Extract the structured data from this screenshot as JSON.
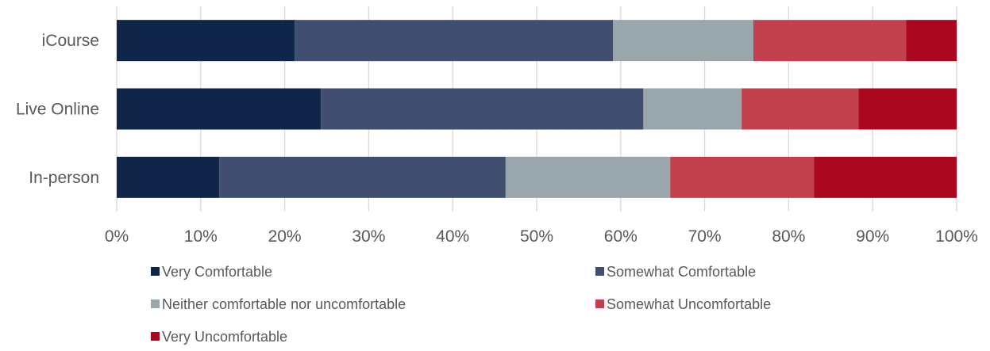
{
  "chart_data": {
    "type": "bar",
    "orientation": "horizontal",
    "stacked": "percent",
    "title": "",
    "xlabel": "",
    "ylabel": "",
    "xlim": [
      0,
      100
    ],
    "grid": true,
    "legend_position": "bottom",
    "categories": [
      "iCourse",
      "Live Online",
      "In-person"
    ],
    "x_ticks": [
      "0%",
      "10%",
      "20%",
      "30%",
      "40%",
      "50%",
      "60%",
      "70%",
      "80%",
      "90%",
      "100%"
    ],
    "series": [
      {
        "name": "Very Comfortable",
        "color": "#0f2549",
        "values": [
          21.2,
          24.3,
          12.2
        ]
      },
      {
        "name": "Somewhat Comfortable",
        "color": "#404f70",
        "values": [
          37.9,
          38.4,
          34.1
        ]
      },
      {
        "name": "Neither comfortable nor uncomfortable",
        "color": "#99a6ab",
        "values": [
          16.7,
          11.7,
          19.6
        ]
      },
      {
        "name": "Somewhat Uncomfortable",
        "color": "#c2404e",
        "values": [
          18.2,
          13.9,
          17.1
        ]
      },
      {
        "name": "Very Uncomfortable",
        "color": "#ab0820",
        "values": [
          6.0,
          11.7,
          17.0
        ]
      }
    ]
  }
}
